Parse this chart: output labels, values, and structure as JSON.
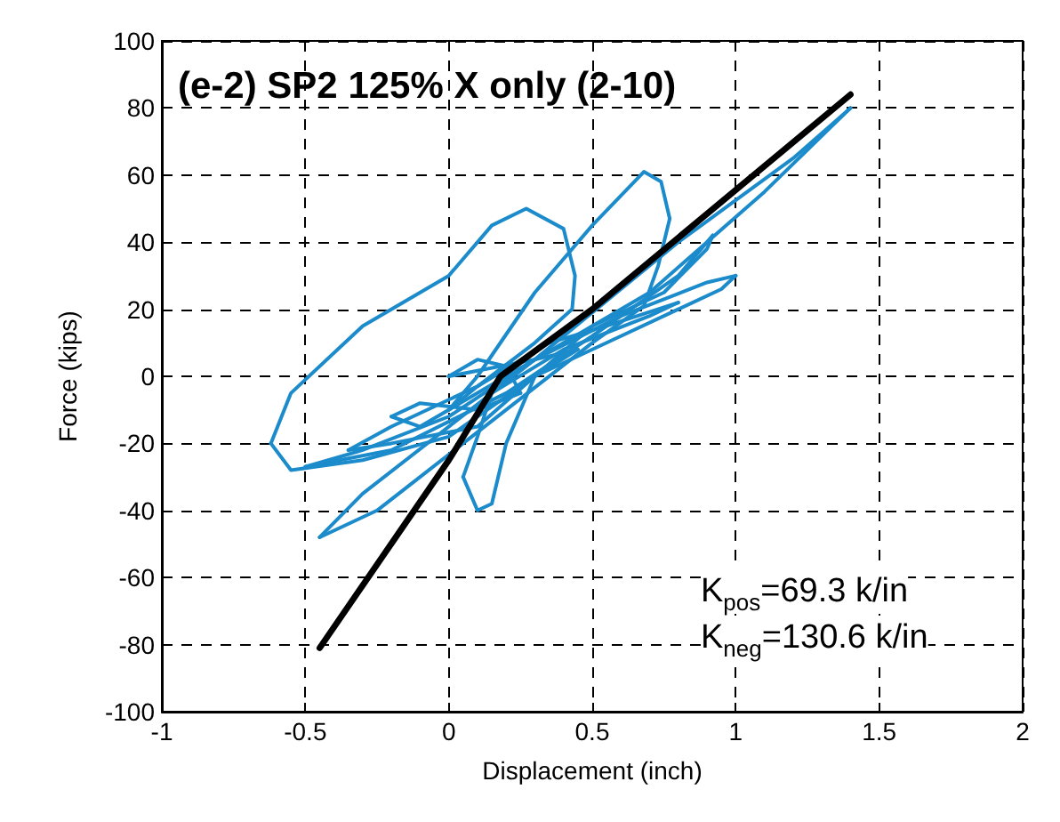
{
  "chart_data": {
    "type": "line",
    "title": "(e-2) SP2 125% X only (2-10)",
    "xlabel": "Displacement (inch)",
    "ylabel": "Force (kips)",
    "xlim": [
      -1,
      2
    ],
    "xticks": [
      -1,
      -0.5,
      0,
      0.5,
      1,
      1.5,
      2
    ],
    "ylim": [
      -100,
      100
    ],
    "yticks": [
      -100,
      -80,
      -60,
      -40,
      -20,
      0,
      20,
      40,
      60,
      80,
      100
    ],
    "grid": true,
    "marker": "none",
    "annotations": [
      "K$_{pos}$=69.3 k/in",
      "K$_{neg}$=130.6 k/in"
    ],
    "series": [
      {
        "color": "#1b8bcb",
        "x": [
          0,
          0.1,
          0.2,
          0.25
        ],
        "values": [
          0,
          5,
          3,
          -5
        ]
      },
      {
        "color": "#1b8bcb",
        "x": [
          0.25,
          0.1,
          -0.1,
          -0.2
        ],
        "values": [
          -5,
          -10,
          -8,
          -12
        ]
      },
      {
        "color": "#1b8bcb",
        "x": [
          -0.2,
          -0.1,
          0.1,
          0.3,
          0.45
        ],
        "values": [
          -12,
          -15,
          -5,
          5,
          8
        ]
      },
      {
        "color": "#1b8bcb",
        "x": [
          0.45,
          0.3,
          0.1,
          -0.2,
          -0.35
        ],
        "values": [
          8,
          0,
          -15,
          -20,
          -22
        ]
      },
      {
        "color": "#1b8bcb",
        "x": [
          -0.35,
          -0.2,
          0.1,
          0.35,
          0.55,
          0.8
        ],
        "values": [
          -22,
          -15,
          -3,
          10,
          15,
          22
        ]
      },
      {
        "color": "#1b8bcb",
        "x": [
          0.8,
          0.7,
          0.4,
          0.15,
          0.1,
          0.05
        ],
        "values": [
          22,
          18,
          8,
          -5,
          -18,
          -30
        ]
      },
      {
        "color": "#1b8bcb",
        "x": [
          0.05,
          0.1,
          0.15,
          0.2,
          0.3,
          0.5,
          0.75,
          0.9,
          0.92
        ],
        "values": [
          -30,
          -40,
          -38,
          -20,
          0,
          15,
          25,
          38,
          42
        ]
      },
      {
        "color": "#1b8bcb",
        "x": [
          0.92,
          0.8,
          0.5,
          0.2,
          -0.2,
          -0.5
        ],
        "values": [
          42,
          30,
          12,
          -5,
          -22,
          -27
        ]
      },
      {
        "color": "#1b8bcb",
        "x": [
          -0.5,
          -0.3,
          0,
          0.3,
          0.6,
          0.9,
          1
        ],
        "values": [
          -27,
          -22,
          -12,
          5,
          18,
          28,
          30
        ]
      },
      {
        "color": "#1b8bcb",
        "x": [
          1,
          0.95,
          0.6,
          0.3,
          0,
          -0.3,
          -0.55,
          -0.62
        ],
        "values": [
          30,
          26,
          12,
          0,
          -18,
          -25,
          -28,
          -20
        ]
      },
      {
        "color": "#1b8bcb",
        "x": [
          -0.62,
          -0.55,
          -0.3,
          0,
          0.15,
          0.27,
          0.4,
          0.44,
          0.43,
          0.3,
          0.1,
          0
        ],
        "values": [
          -20,
          -5,
          15,
          30,
          45,
          50,
          44,
          30,
          20,
          10,
          -3,
          -10
        ]
      },
      {
        "color": "#1b8bcb",
        "x": [
          0,
          0.1,
          0.3,
          0.5,
          0.68,
          0.74,
          0.77
        ],
        "values": [
          -10,
          0,
          25,
          45,
          61,
          58,
          47
        ]
      },
      {
        "color": "#1b8bcb",
        "x": [
          0.77,
          0.73,
          0.68,
          0.5,
          0.2,
          -0.1,
          -0.25,
          -0.45
        ],
        "values": [
          47,
          33,
          21,
          10,
          -10,
          -30,
          -40,
          -48
        ]
      },
      {
        "color": "#1b8bcb",
        "x": [
          -0.45,
          -0.3,
          0,
          0.3,
          0.8,
          1.2,
          1.4
        ],
        "values": [
          -48,
          -35,
          -15,
          5,
          40,
          65,
          80
        ]
      },
      {
        "color": "#1b8bcb",
        "x": [
          1.4,
          1.1,
          0.7,
          0.3,
          0
        ],
        "values": [
          80,
          55,
          25,
          5,
          0
        ]
      },
      {
        "color": "#000000",
        "x": [
          -0.45,
          0,
          0.18,
          0.5,
          1.4
        ],
        "values": [
          -81,
          -25,
          0,
          20,
          84
        ]
      }
    ]
  }
}
